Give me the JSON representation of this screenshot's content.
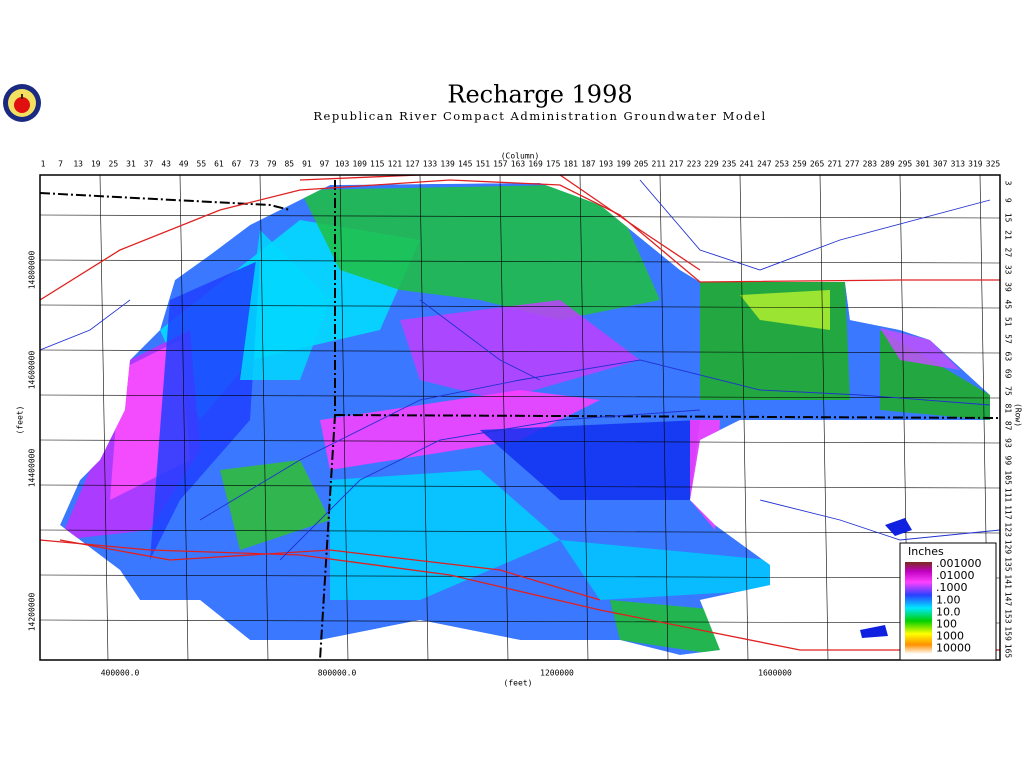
{
  "header": {
    "title": "Recharge 1998",
    "subtitle": "Republican River Compact Administration Groundwater Model"
  },
  "map": {
    "column_label": "(Column)",
    "row_label": "(Row)",
    "columns": [
      "1",
      "7",
      "13",
      "19",
      "25",
      "31",
      "37",
      "43",
      "49",
      "55",
      "61",
      "67",
      "73",
      "79",
      "85",
      "91",
      "97",
      "103",
      "109",
      "115",
      "121",
      "127",
      "133",
      "139",
      "145",
      "151",
      "157",
      "163",
      "169",
      "175",
      "181",
      "187",
      "193",
      "199",
      "205",
      "211",
      "217",
      "223",
      "229",
      "235",
      "241",
      "247",
      "253",
      "259",
      "265",
      "271",
      "277",
      "283",
      "289",
      "295",
      "301",
      "307",
      "313",
      "319",
      "325"
    ],
    "rows": [
      "3",
      "9",
      "15",
      "21",
      "27",
      "33",
      "39",
      "45",
      "51",
      "57",
      "63",
      "69",
      "75",
      "81",
      "87",
      "93",
      "99",
      "105",
      "111",
      "117",
      "123",
      "129",
      "135",
      "141",
      "147",
      "153",
      "159",
      "165"
    ],
    "x_axis_label": "(feet)",
    "y_axis_label": "(feet)",
    "x_ticks": [
      "400000.0",
      "800000.0",
      "1200000",
      "1600000"
    ],
    "y_ticks": [
      "14800000",
      "14600000",
      "14400000",
      "14200000"
    ]
  },
  "legend": {
    "title": "Inches",
    "labels": [
      ".001000",
      ".01000",
      ".1000",
      "1.00",
      "10.0",
      "100",
      "1000",
      "10000"
    ]
  }
}
